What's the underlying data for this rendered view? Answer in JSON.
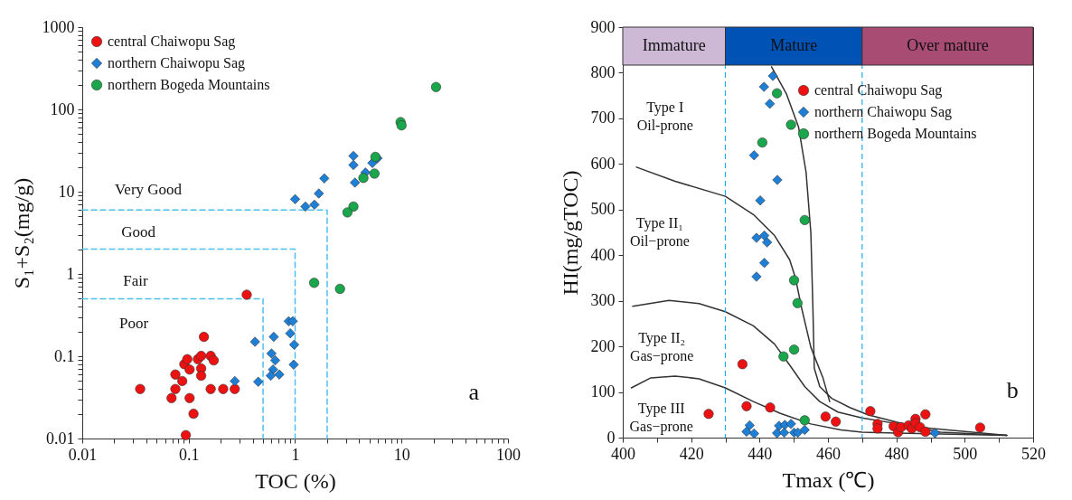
{
  "chart_data": [
    {
      "type": "scatter",
      "xlabel": "TOC (%)",
      "ylabel": "S₁+S₂(mg/g)",
      "log": "xy",
      "xlim": [
        0.01,
        100
      ],
      "ylim": [
        0.01,
        1000
      ],
      "xticks": [
        0.01,
        {
          "value": 0.02,
          "label": null
        },
        {
          "value": 0.03,
          "label": null
        },
        {
          "value": 0.04,
          "label": null
        },
        {
          "value": 0.05,
          "label": null
        },
        {
          "value": 0.06,
          "label": null
        },
        {
          "value": 0.07,
          "label": null
        },
        {
          "value": 0.08,
          "label": null
        },
        {
          "value": 0.09,
          "label": null
        },
        0.1,
        {
          "value": 0.2,
          "label": null
        },
        {
          "value": 0.3,
          "label": null
        },
        {
          "value": 0.4,
          "label": null
        },
        {
          "value": 0.5,
          "label": null
        },
        {
          "value": 0.6,
          "label": null
        },
        {
          "value": 0.7,
          "label": null
        },
        {
          "value": 0.8,
          "label": null
        },
        {
          "value": 0.9,
          "label": null
        },
        1,
        {
          "value": 2,
          "label": null
        },
        {
          "value": 3,
          "label": null
        },
        {
          "value": 4,
          "label": null
        },
        {
          "value": 5,
          "label": null
        },
        {
          "value": 6,
          "label": null
        },
        {
          "value": 7,
          "label": null
        },
        {
          "value": 8,
          "label": null
        },
        {
          "value": 9,
          "label": null
        },
        10,
        {
          "value": 20,
          "label": null
        },
        {
          "value": 30,
          "label": null
        },
        {
          "value": 40,
          "label": null
        },
        {
          "value": 50,
          "label": null
        },
        {
          "value": 60,
          "label": null
        },
        {
          "value": 70,
          "label": null
        },
        {
          "value": 80,
          "label": null
        },
        {
          "value": 90,
          "label": null
        },
        100
      ],
      "yticks": [
        0.01,
        {
          "value": 0.02,
          "label": null
        },
        {
          "value": 0.03,
          "label": null
        },
        {
          "value": 0.04,
          "label": null
        },
        {
          "value": 0.05,
          "label": null
        },
        {
          "value": 0.06,
          "label": null
        },
        {
          "value": 0.07,
          "label": null
        },
        {
          "value": 0.08,
          "label": null
        },
        {
          "value": 0.09,
          "label": null
        },
        0.1,
        {
          "value": 0.2,
          "label": null
        },
        {
          "value": 0.3,
          "label": null
        },
        {
          "value": 0.4,
          "label": null
        },
        {
          "value": 0.5,
          "label": null
        },
        {
          "value": 0.6,
          "label": null
        },
        {
          "value": 0.7,
          "label": null
        },
        {
          "value": 0.8,
          "label": null
        },
        {
          "value": 0.9,
          "label": null
        },
        1,
        {
          "value": 2,
          "label": null
        },
        {
          "value": 3,
          "label": null
        },
        {
          "value": 4,
          "label": null
        },
        {
          "value": 5,
          "label": null
        },
        {
          "value": 6,
          "label": null
        },
        {
          "value": 7,
          "label": null
        },
        {
          "value": 8,
          "label": null
        },
        {
          "value": 9,
          "label": null
        },
        10,
        {
          "value": 20,
          "label": null
        },
        {
          "value": 30,
          "label": null
        },
        {
          "value": 40,
          "label": null
        },
        {
          "value": 50,
          "label": null
        },
        {
          "value": 60,
          "label": null
        },
        {
          "value": 70,
          "label": null
        },
        {
          "value": 80,
          "label": null
        },
        {
          "value": 90,
          "label": null
        },
        100,
        {
          "value": 200,
          "label": null
        },
        {
          "value": 300,
          "label": null
        },
        {
          "value": 400,
          "label": null
        },
        {
          "value": 500,
          "label": null
        },
        {
          "value": 600,
          "label": null
        },
        {
          "value": 700,
          "label": null
        },
        {
          "value": 800,
          "label": null
        },
        {
          "value": 900,
          "label": null
        },
        1000
      ],
      "legend": "top left",
      "series": [
        {
          "type": "line",
          "color": "#4dbfee",
          "line_style": "dashed",
          "x": [
            0.01,
            0.5,
            0.5
          ],
          "values": [
            0.5,
            0.5,
            0.01
          ]
        },
        {
          "type": "line",
          "color": "#4dbfee",
          "line_style": "dashed",
          "x": [
            0.01,
            1,
            1
          ],
          "values": [
            2,
            2,
            0.01
          ]
        },
        {
          "type": "line",
          "color": "#4dbfee",
          "line_style": "dashed",
          "x": [
            0.01,
            2,
            2
          ],
          "values": [
            6,
            6,
            0.01
          ]
        },
        {
          "name": "central Chaiwopu Sag",
          "type": "scatter",
          "marker": "circle",
          "color": "#ee1111",
          "x": [
            0.035,
            0.069,
            0.075,
            0.075,
            0.087,
            0.091,
            0.097,
            0.102,
            0.102,
            0.111,
            0.094,
            0.122,
            0.131,
            0.131,
            0.131,
            0.139,
            0.161,
            0.172,
            0.161,
            0.211,
            0.271,
            0.351
          ],
          "values": [
            0.04,
            0.031,
            0.04,
            0.06,
            0.05,
            0.08,
            0.092,
            0.069,
            0.031,
            0.02,
            0.011,
            0.092,
            0.101,
            0.071,
            0.058,
            0.172,
            0.101,
            0.089,
            0.04,
            0.04,
            0.04,
            0.56
          ]
        },
        {
          "name": "northern Chaiwopu Sag",
          "type": "scatter",
          "marker": "diamond",
          "color": "#1e7fd6",
          "x": [
            0.271,
            0.42,
            0.45,
            0.63,
            0.6,
            0.65,
            0.62,
            0.59,
            0.71,
            0.87,
            0.95,
            0.9,
            0.98,
            0.97,
            1.0,
            1.25,
            1.52,
            1.67,
            1.88,
            3.53,
            3.53,
            3.65,
            4.58,
            5.32,
            5.94
          ],
          "values": [
            0.05,
            0.15,
            0.049,
            0.172,
            0.108,
            0.089,
            0.069,
            0.058,
            0.06,
            0.266,
            0.266,
            0.19,
            0.138,
            0.079,
            8.1,
            6.6,
            6.95,
            9.5,
            14.5,
            27.2,
            21.1,
            12.9,
            17.1,
            22.3,
            25.5
          ]
        },
        {
          "name": "northern Bogeda Mountains",
          "type": "scatter",
          "marker": "circle",
          "color": "#1aa64b",
          "x": [
            21.1,
            9.8,
            10.0,
            5.68,
            5.57,
            4.38,
            3.53,
            3.1,
            1.51,
            2.64
          ],
          "values": [
            187,
            70,
            64,
            26.5,
            16.6,
            14.7,
            6.6,
            5.6,
            0.78,
            0.66
          ]
        }
      ],
      "annotations": [
        "Very Good",
        "Good",
        "Fair",
        "Poor",
        "a"
      ]
    },
    {
      "type": "scatter",
      "xlabel": "Tmax (℃)",
      "ylabel": "HI(mg/gTOC)",
      "xlim": [
        400,
        520
      ],
      "ylim": [
        0,
        900
      ],
      "xticks": [
        400,
        {
          "value": 410,
          "label": null
        },
        420,
        {
          "value": 430,
          "label": null
        },
        440,
        {
          "value": 450,
          "label": null
        },
        460,
        {
          "value": 470,
          "label": null
        },
        480,
        {
          "value": 490,
          "label": null
        },
        500,
        {
          "value": 510,
          "label": null
        },
        520
      ],
      "yticks": [
        0,
        100,
        200,
        300,
        400,
        500,
        600,
        700,
        800,
        900
      ],
      "legend": "top right",
      "bands": [
        {
          "axis": "x",
          "from": 400,
          "to": 430,
          "label": "Immature",
          "color": "#cdb9d6"
        },
        {
          "axis": "x",
          "from": 430,
          "to": 470,
          "label": "Mature",
          "color": "#0052b5"
        },
        {
          "axis": "x",
          "from": 470,
          "to": 520,
          "label": "Over mature",
          "color": "#a84c73"
        }
      ],
      "ref_lines": [
        {
          "axis": "x",
          "value": 430,
          "color": "#22aaee",
          "line_style": "dashed"
        },
        {
          "axis": "x",
          "value": 470,
          "color": "#22aaee",
          "line_style": "dashed"
        }
      ],
      "series": [
        {
          "type": "line",
          "color": "#333333",
          "x": [
            443.5,
            447.9,
            451.4,
            453.6,
            455,
            455.6,
            456,
            457.6,
            461.1,
            466.4,
            471.7,
            485.9,
            512.3
          ],
          "values": [
            813,
            753,
            681,
            582,
            449,
            284,
            152,
            112,
            86,
            66,
            50,
            23,
            5
          ]
        },
        {
          "type": "line",
          "color": "#333333",
          "x": [
            404,
            415.3,
            430,
            438.2,
            444.4,
            448.8,
            450.5,
            452.3,
            455,
            458.5,
            460.5
          ],
          "values": [
            593,
            562,
            529,
            489,
            443,
            390,
            350,
            284,
            198,
            132,
            79
          ]
        },
        {
          "type": "line",
          "color": "#333333",
          "x": [
            402.9,
            413.5,
            422.3,
            430,
            438.2,
            444.4,
            448.8,
            453.2,
            457.6,
            462.9,
            470,
            480.6,
            492.9,
            512.3
          ],
          "values": [
            288,
            301,
            294,
            276,
            245,
            205,
            159,
            112,
            79,
            56,
            43,
            30,
            12,
            5
          ]
        },
        {
          "type": "line",
          "color": "#333333",
          "x": [
            402.5,
            408.2,
            415.3,
            422.3,
            430,
            438.2,
            446.1,
            455,
            463.8,
            470,
            480,
            492.9,
            512.3
          ],
          "values": [
            109,
            131,
            135,
            129,
            109,
            79,
            53,
            30,
            17,
            12,
            10,
            8,
            5
          ]
        },
        {
          "name": "central Chaiwopu Sag",
          "type": "scatter",
          "marker": "circle",
          "color": "#ee1111",
          "x": [
            425.1,
            435,
            436.2,
            443.1,
            459.3,
            462.3,
            472.4,
            474.5,
            474.5,
            479.2,
            480.5,
            481.4,
            483.6,
            484.5,
            485.6,
            485.6,
            486.9,
            488.5,
            488.5,
            504.5
          ],
          "values": [
            52,
            161,
            69,
            66,
            46,
            35,
            58,
            30,
            20,
            25,
            12,
            23,
            27,
            20,
            41,
            32,
            23,
            51,
            13,
            22
          ]
        },
        {
          "name": "northern Chaiwopu Sag",
          "type": "scatter",
          "marker": "diamond",
          "color": "#1e7fd6",
          "x": [
            443.9,
            441.3,
            443,
            438.4,
            445.2,
            440.2,
            439.1,
            441.4,
            442.2,
            441.4,
            439.1,
            437.1,
            436.2,
            438.4,
            445.7,
            447.4,
            449.2,
            445.1,
            447.2,
            450.1,
            451.2,
            453.2,
            491.3
          ],
          "values": [
            793,
            769,
            732,
            619,
            565,
            520,
            438,
            443,
            428,
            383,
            353,
            27,
            13,
            9,
            26,
            28,
            30,
            10,
            11,
            11,
            11,
            17,
            10
          ]
        },
        {
          "name": "northern Bogeda Mountains",
          "type": "scatter",
          "marker": "circle",
          "color": "#1aa64b",
          "x": [
            445.1,
            449.2,
            440.8,
            453.2,
            450.1,
            451.1,
            450.1,
            447,
            453.2
          ],
          "values": [
            755,
            686,
            647,
            477,
            345,
            295,
            193,
            178,
            38
          ]
        }
      ],
      "annotations": [
        "Type I\nOil-prone",
        "Type II₁\nOil−prone",
        "Type II₂\nGas−prone",
        "Type III\nGas−prone",
        "b"
      ]
    }
  ]
}
